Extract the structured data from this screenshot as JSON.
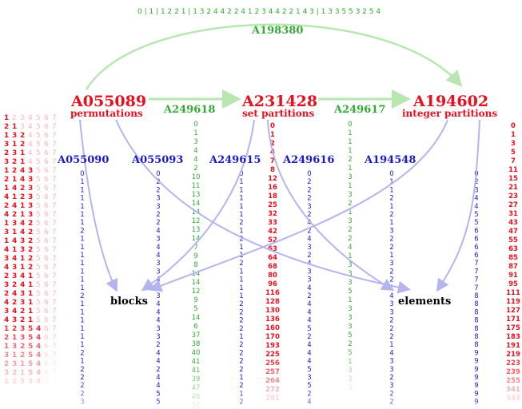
{
  "colors": {
    "red": "#e8101e",
    "green": "#33aa33",
    "blue": "#1a1acc",
    "arrow_blue": "#b4b4ee",
    "arrow_green": "#b8e6b0"
  },
  "top_sequence": {
    "label": "A198380",
    "text": "0 | 1 | 1 2 2 1 | 1 3 2 4 4 2 2 4 1 2 3 4 4 2 2 1 4 3 | 1 3 3 5 5 3 2 5 4"
  },
  "nodes": {
    "permutations": {
      "id": "A055089",
      "label": "permutations"
    },
    "set_partitions": {
      "id": "A231428",
      "label": "set partitions"
    },
    "integer_partitions": {
      "id": "A194602",
      "label": "integer partitions"
    },
    "blocks": "blocks",
    "elements": "elements"
  },
  "edges": {
    "perm_to_set": "A249618",
    "set_to_int": "A249617"
  },
  "permutations_list": {
    "rows": [
      "1234567",
      "2134567",
      "1324567",
      "3124567",
      "2314567",
      "3214567",
      "1243567",
      "2143567",
      "1423567",
      "4123567",
      "2413567",
      "4213567",
      "1342567",
      "3142567",
      "1432567",
      "4132567",
      "3412567",
      "4312567",
      "2341567",
      "3241567",
      "2431567",
      "4231567",
      "3421567",
      "4321567",
      "1235467",
      "2135467",
      "1325467",
      "3125467",
      "2315467",
      "3215467",
      "1253467"
    ],
    "highlighted": [
      1,
      2,
      3,
      3,
      3,
      3,
      4,
      4,
      4,
      4,
      4,
      4,
      4,
      4,
      4,
      4,
      4,
      4,
      4,
      4,
      4,
      4,
      4,
      4,
      5,
      5,
      5,
      5,
      5,
      5,
      5
    ]
  },
  "columns": [
    {
      "label": "A055090",
      "color": "blue",
      "values": [
        "0",
        "1",
        "1",
        "1",
        "1",
        "1",
        "1",
        "2",
        "1",
        "1",
        "1",
        "1",
        "1",
        "1",
        "1",
        "2",
        "1",
        "1",
        "1",
        "1",
        "1",
        "1",
        "2",
        "1",
        "2",
        "2",
        "2",
        "2",
        "3",
        "3",
        "3"
      ]
    },
    {
      "label": "A055093",
      "color": "blue",
      "values": [
        "0",
        "2",
        "2",
        "3",
        "3",
        "2",
        "2",
        "4",
        "3",
        "4",
        "4",
        "3",
        "3",
        "4",
        "2",
        "3",
        "4",
        "4",
        "4",
        "3",
        "3",
        "2",
        "4",
        "4",
        "2",
        "4",
        "4",
        "5",
        "5",
        "4",
        "3",
        "5",
        "4"
      ]
    },
    {
      "label": "",
      "color": "green",
      "values": [
        "0",
        "1",
        "3",
        "4",
        "4",
        "2",
        "10",
        "11",
        "13",
        "14",
        "14",
        "12",
        "13",
        "14",
        "7",
        "9",
        "8",
        "14",
        "14",
        "12",
        "9",
        "5",
        "14",
        "6",
        "37",
        "38",
        "40",
        "41",
        "41",
        "39",
        "47",
        "48",
        "50"
      ]
    },
    {
      "label": "A249615",
      "color": "blue",
      "values": [
        "0",
        "1",
        "1",
        "1",
        "1",
        "1",
        "2",
        "1",
        "2",
        "1",
        "1",
        "2",
        "1",
        "1",
        "1",
        "1",
        "2",
        "2",
        "2",
        "2",
        "1",
        "2",
        "2",
        "2",
        "2",
        "1",
        "2",
        "1",
        "2",
        "2",
        "2",
        "2"
      ]
    },
    {
      "label": "",
      "color": "red",
      "values": [
        "0",
        "1",
        "2",
        "4",
        "7",
        "8",
        "12",
        "16",
        "18",
        "25",
        "32",
        "33",
        "42",
        "52",
        "63",
        "64",
        "68",
        "80",
        "96",
        "116",
        "128",
        "130",
        "136",
        "160",
        "170",
        "193",
        "225",
        "256",
        "257",
        "264",
        "272",
        "281"
      ]
    },
    {
      "label": "A249616",
      "color": "blue",
      "values": [
        "0",
        "2",
        "2",
        "2",
        "3",
        "2",
        "4",
        "2",
        "4",
        "3",
        "2",
        "4",
        "3",
        "3",
        "4",
        "2",
        "4",
        "4",
        "4",
        "5",
        "2",
        "4",
        "4",
        "4",
        "5",
        "3",
        "5",
        "2",
        "4",
        "4",
        "4",
        "5"
      ]
    },
    {
      "label": "",
      "color": "green",
      "values": [
        "0",
        "1",
        "1",
        "1",
        "2",
        "1",
        "3",
        "1",
        "3",
        "2",
        "1",
        "3",
        "2",
        "2",
        "4",
        "1",
        "3",
        "3",
        "3",
        "5",
        "1",
        "3",
        "3",
        "3",
        "5",
        "2",
        "5",
        "1",
        "3",
        "3",
        "3"
      ]
    },
    {
      "label": "A194548",
      "color": "blue",
      "values": [
        "0",
        "1",
        "1",
        "2",
        "1",
        "2",
        "1",
        "3",
        "2",
        "2",
        "1",
        "3",
        "2",
        "2",
        "1",
        "4",
        "3",
        "3",
        "2",
        "2",
        "2",
        "1",
        "4",
        "3",
        "3",
        "2",
        "3",
        "2",
        "2",
        "1",
        "5",
        "4"
      ]
    },
    {
      "label": "",
      "color": "blue",
      "values": [
        "0",
        "2",
        "3",
        "4",
        "4",
        "5",
        "5",
        "6",
        "6",
        "6",
        "6",
        "7",
        "7",
        "7",
        "7",
        "8",
        "8",
        "8",
        "8",
        "8",
        "8",
        "8",
        "9",
        "9",
        "9",
        "9",
        "9",
        "9",
        "9",
        "9",
        "10",
        "10",
        "10"
      ]
    },
    {
      "label": "",
      "color": "red",
      "values": [
        "0",
        "1",
        "3",
        "5",
        "7",
        "11",
        "15",
        "21",
        "23",
        "27",
        "31",
        "43",
        "47",
        "55",
        "63",
        "85",
        "87",
        "91",
        "95",
        "111",
        "119",
        "127",
        "171",
        "175",
        "183",
        "191",
        "219",
        "223",
        "239",
        "255",
        "341",
        "343"
      ]
    }
  ]
}
